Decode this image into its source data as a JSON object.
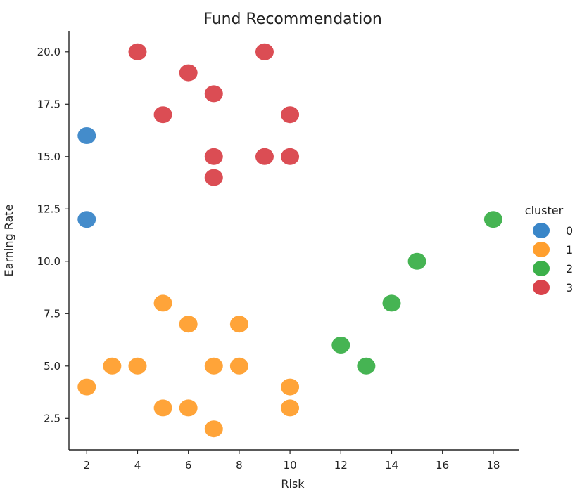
{
  "chart_data": {
    "type": "scatter",
    "title": "Fund Recommendation",
    "xlabel": "Risk",
    "ylabel": "Earning Rate",
    "xlim": [
      1.3,
      19.0
    ],
    "ylim": [
      1.0,
      21.0
    ],
    "xticks": [
      "2",
      "4",
      "6",
      "8",
      "10",
      "12",
      "14",
      "16",
      "18"
    ],
    "yticks": [
      "2.5",
      "5.0",
      "7.5",
      "10.0",
      "12.5",
      "15.0",
      "17.5",
      "20.0"
    ],
    "grid": false,
    "legend": {
      "title": "cluster",
      "placement": "right"
    },
    "series": [
      {
        "name": "0",
        "color": "#3a86c8",
        "points": [
          [
            2,
            16
          ],
          [
            2,
            12
          ]
        ]
      },
      {
        "name": "1",
        "color": "#ff9f2e",
        "points": [
          [
            5,
            8
          ],
          [
            6,
            7
          ],
          [
            8,
            7
          ],
          [
            3,
            5
          ],
          [
            4,
            5
          ],
          [
            7,
            5
          ],
          [
            8,
            5
          ],
          [
            2,
            4
          ],
          [
            10,
            4
          ],
          [
            5,
            3
          ],
          [
            6,
            3
          ],
          [
            10,
            3
          ],
          [
            7,
            2
          ]
        ]
      },
      {
        "name": "2",
        "color": "#3cb04a",
        "points": [
          [
            18,
            12
          ],
          [
            15,
            10
          ],
          [
            14,
            8
          ],
          [
            12,
            6
          ],
          [
            13,
            5
          ]
        ]
      },
      {
        "name": "3",
        "color": "#d9434b",
        "points": [
          [
            4,
            20
          ],
          [
            9,
            20
          ],
          [
            6,
            19
          ],
          [
            7,
            18
          ],
          [
            5,
            17
          ],
          [
            10,
            17
          ],
          [
            7,
            15
          ],
          [
            9,
            15
          ],
          [
            10,
            15
          ],
          [
            7,
            14
          ]
        ]
      }
    ]
  }
}
